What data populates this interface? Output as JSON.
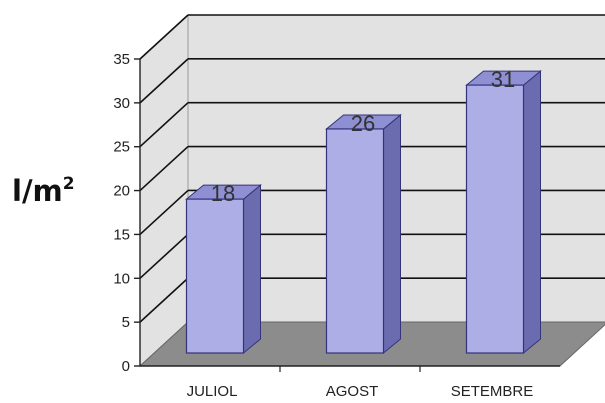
{
  "chart_data": {
    "type": "bar",
    "categories": [
      "JULIOL",
      "AGOST",
      "SETEMBRE"
    ],
    "values": [
      18,
      26,
      31
    ],
    "data_labels": [
      "18",
      "26",
      "31"
    ],
    "ylabel_base": "l/m",
    "ylabel_exponent": "2",
    "ylim": [
      0,
      35
    ],
    "yticks": [
      "0",
      "5",
      "10",
      "15",
      "20",
      "25",
      "30",
      "35"
    ],
    "grid": true,
    "three_d": true,
    "colors": {
      "bar_front": "#aeaee6",
      "bar_side": "#6b6bb0",
      "bar_top": "#8f8fd3",
      "wall": "#e2e2e2",
      "floor": "#8c8c8c",
      "gridline": "#111111"
    }
  }
}
